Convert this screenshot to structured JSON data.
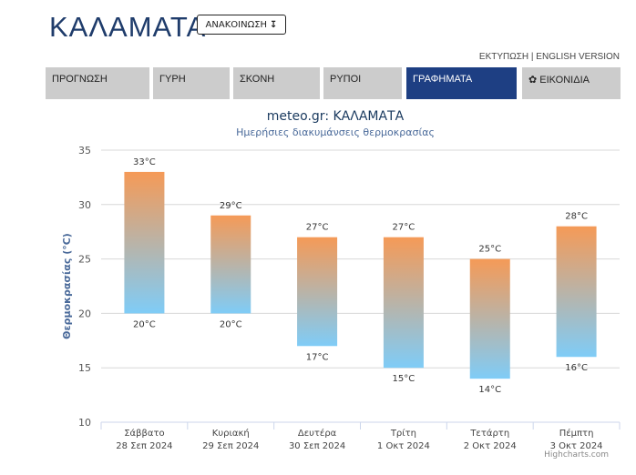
{
  "header": {
    "city": "ΚΑΛΑΜΑΤΑ",
    "announce_label": "ΑΝΑΚΟΙΝΩΣΗ",
    "announce_arrow": "↧",
    "print_label": "ΕΚΤΥΠΩΣΗ",
    "separator": "|",
    "english_label": "ENGLISH VERSION"
  },
  "tabs": [
    {
      "label": "ΠΡΟΓΝΩΣΗ"
    },
    {
      "label": "ΓΥΡΗ"
    },
    {
      "label": "ΣΚΟΝΗ"
    },
    {
      "label": "ΡΥΠΟΙ"
    },
    {
      "label": "ΓΡΑΦΗΜΑΤΑ"
    },
    {
      "label": "ΕΙΚΟΝΙΔΙΑ",
      "icon": "gear-icon"
    }
  ],
  "colors": {
    "accent": "#1e3f83",
    "tab_bg": "#cccccc",
    "bar_top": "#f59a57",
    "bar_bottom": "#7fccf7"
  },
  "chart_data": {
    "type": "bar",
    "title": "meteo.gr: ΚΑΛΑΜΑΤΑ",
    "subtitle": "Ημερήσιες διακυμάνσεις θερμοκρασίας",
    "ylabel": "Θερμοκρασίας (°C)",
    "ylim": [
      10,
      35
    ],
    "yticks": [
      "10",
      "15",
      "20",
      "25",
      "30",
      "35"
    ],
    "categories": [
      {
        "day": "Σάββατο",
        "date": "28 Σεπ 2024"
      },
      {
        "day": "Κυριακή",
        "date": "29 Σεπ 2024"
      },
      {
        "day": "Δευτέρα",
        "date": "30 Σεπ 2024"
      },
      {
        "day": "Τρίτη",
        "date": "1 Οκτ 2024"
      },
      {
        "day": "Τετάρτη",
        "date": "2 Οκτ 2024"
      },
      {
        "day": "Πέμπτη",
        "date": "3 Οκτ 2024"
      }
    ],
    "series": [
      {
        "low": [
          20,
          20,
          17,
          15,
          14,
          16
        ],
        "high": [
          33,
          29,
          27,
          27,
          25,
          28
        ]
      }
    ],
    "unit": "°C",
    "grid": true,
    "credits": "Highcharts.com"
  }
}
